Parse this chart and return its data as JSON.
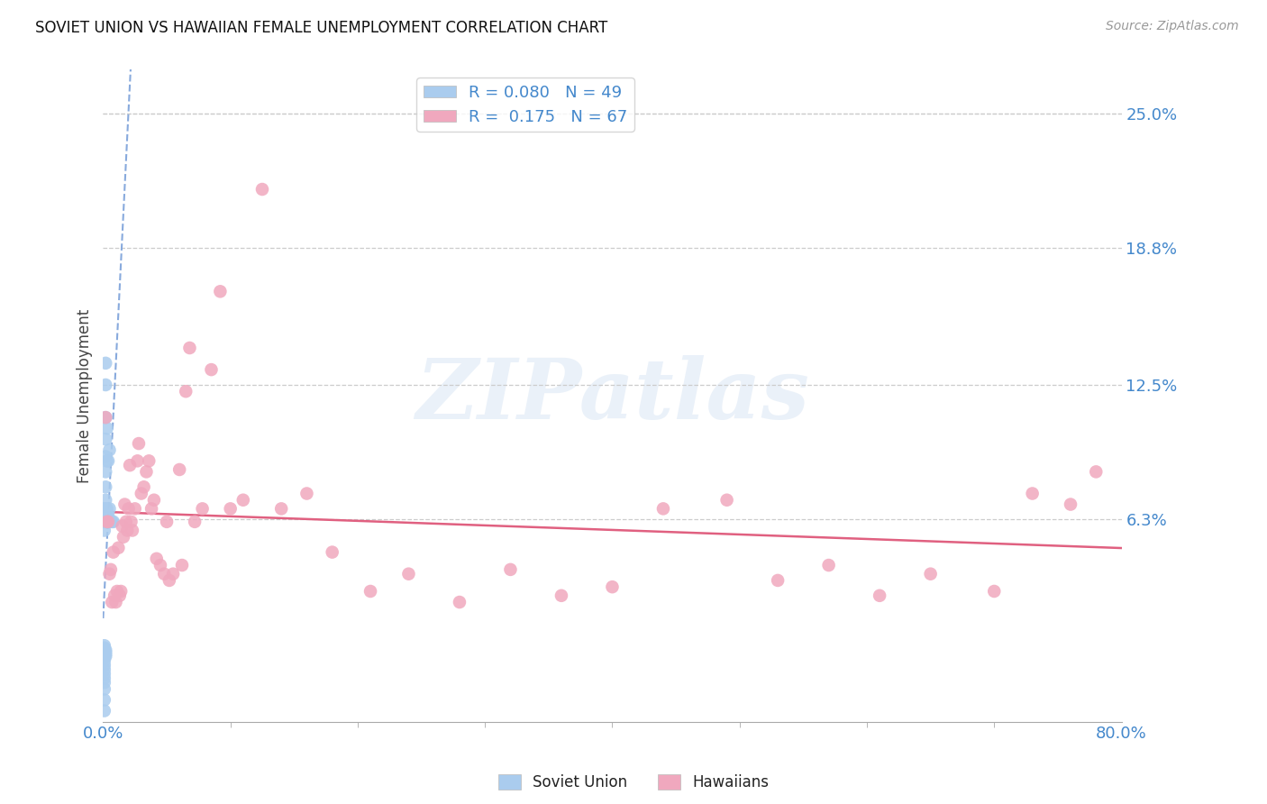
{
  "title": "SOVIET UNION VS HAWAIIAN FEMALE UNEMPLOYMENT CORRELATION CHART",
  "source": "Source: ZipAtlas.com",
  "ylabel": "Female Unemployment",
  "xlim": [
    0.0,
    0.8
  ],
  "ylim": [
    -0.03,
    0.27
  ],
  "yticks": [
    0.063,
    0.125,
    0.188,
    0.25
  ],
  "ytick_labels": [
    "6.3%",
    "12.5%",
    "18.8%",
    "25.0%"
  ],
  "xtick_positions": [
    0.0,
    0.8
  ],
  "xtick_labels": [
    "0.0%",
    "80.0%"
  ],
  "soviet_R": 0.08,
  "soviet_N": 49,
  "hawaiian_R": 0.175,
  "hawaiian_N": 67,
  "soviet_color": "#aaccee",
  "hawaiian_color": "#f0a8be",
  "soviet_trend_color": "#88aadd",
  "hawaiian_trend_color": "#e06080",
  "axis_tick_color": "#4488cc",
  "watermark_text": "ZIPatlas",
  "soviet_x": [
    0.001,
    0.001,
    0.001,
    0.001,
    0.001,
    0.001,
    0.001,
    0.001,
    0.001,
    0.001,
    0.001,
    0.001,
    0.001,
    0.001,
    0.001,
    0.001,
    0.001,
    0.001,
    0.001,
    0.001,
    0.002,
    0.002,
    0.002,
    0.002,
    0.002,
    0.002,
    0.002,
    0.002,
    0.002,
    0.002,
    0.002,
    0.002,
    0.002,
    0.002,
    0.002,
    0.003,
    0.003,
    0.003,
    0.003,
    0.003,
    0.004,
    0.004,
    0.004,
    0.005,
    0.005,
    0.005,
    0.006,
    0.007,
    0.008
  ],
  "soviet_y": [
    -0.025,
    -0.02,
    -0.015,
    -0.012,
    -0.01,
    -0.008,
    -0.006,
    -0.004,
    -0.002,
    0.0,
    0.0,
    0.001,
    0.002,
    0.003,
    0.004,
    0.005,
    0.058,
    0.062,
    0.065,
    0.068,
    0.0,
    0.001,
    0.002,
    0.003,
    0.062,
    0.065,
    0.068,
    0.072,
    0.078,
    0.085,
    0.092,
    0.1,
    0.11,
    0.125,
    0.135,
    0.062,
    0.065,
    0.068,
    0.09,
    0.105,
    0.062,
    0.065,
    0.09,
    0.062,
    0.068,
    0.095,
    0.062,
    0.062,
    0.062
  ],
  "hawaiian_x": [
    0.002,
    0.003,
    0.004,
    0.005,
    0.006,
    0.007,
    0.008,
    0.009,
    0.01,
    0.011,
    0.012,
    0.013,
    0.014,
    0.015,
    0.016,
    0.017,
    0.018,
    0.019,
    0.02,
    0.021,
    0.022,
    0.023,
    0.025,
    0.027,
    0.028,
    0.03,
    0.032,
    0.034,
    0.036,
    0.038,
    0.04,
    0.042,
    0.045,
    0.048,
    0.05,
    0.052,
    0.055,
    0.06,
    0.062,
    0.065,
    0.068,
    0.072,
    0.078,
    0.085,
    0.092,
    0.1,
    0.11,
    0.125,
    0.14,
    0.16,
    0.18,
    0.21,
    0.24,
    0.28,
    0.32,
    0.36,
    0.4,
    0.44,
    0.49,
    0.53,
    0.57,
    0.61,
    0.65,
    0.7,
    0.73,
    0.76,
    0.78
  ],
  "hawaiian_y": [
    0.11,
    0.062,
    0.062,
    0.038,
    0.04,
    0.025,
    0.048,
    0.028,
    0.025,
    0.03,
    0.05,
    0.028,
    0.03,
    0.06,
    0.055,
    0.07,
    0.062,
    0.058,
    0.068,
    0.088,
    0.062,
    0.058,
    0.068,
    0.09,
    0.098,
    0.075,
    0.078,
    0.085,
    0.09,
    0.068,
    0.072,
    0.045,
    0.042,
    0.038,
    0.062,
    0.035,
    0.038,
    0.086,
    0.042,
    0.122,
    0.142,
    0.062,
    0.068,
    0.132,
    0.168,
    0.068,
    0.072,
    0.215,
    0.068,
    0.075,
    0.048,
    0.03,
    0.038,
    0.025,
    0.04,
    0.028,
    0.032,
    0.068,
    0.072,
    0.035,
    0.042,
    0.028,
    0.038,
    0.03,
    0.075,
    0.07,
    0.085
  ]
}
